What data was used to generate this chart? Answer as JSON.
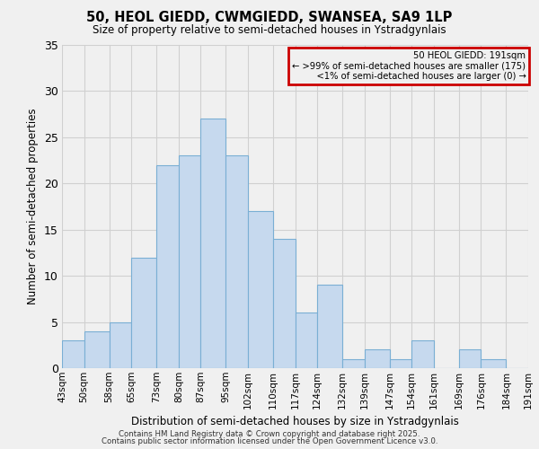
{
  "title": "50, HEOL GIEDD, CWMGIEDD, SWANSEA, SA9 1LP",
  "subtitle": "Size of property relative to semi-detached houses in Ystradgynlais",
  "xlabel": "Distribution of semi-detached houses by size in Ystradgynlais",
  "ylabel": "Number of semi-detached properties",
  "bins": [
    43,
    50,
    58,
    65,
    73,
    80,
    87,
    95,
    102,
    110,
    117,
    124,
    132,
    139,
    147,
    154,
    161,
    169,
    176,
    184,
    191
  ],
  "counts": [
    3,
    4,
    5,
    12,
    22,
    23,
    27,
    23,
    17,
    14,
    6,
    9,
    1,
    2,
    1,
    3,
    0,
    2,
    1,
    0
  ],
  "bar_color": "#c6d9ee",
  "bar_edge_color": "#7aafd4",
  "ylim": [
    0,
    35
  ],
  "yticks": [
    0,
    5,
    10,
    15,
    20,
    25,
    30,
    35
  ],
  "tick_labels": [
    "43sqm",
    "50sqm",
    "58sqm",
    "65sqm",
    "73sqm",
    "80sqm",
    "87sqm",
    "95sqm",
    "102sqm",
    "110sqm",
    "117sqm",
    "124sqm",
    "132sqm",
    "139sqm",
    "147sqm",
    "154sqm",
    "161sqm",
    "169sqm",
    "176sqm",
    "184sqm",
    "191sqm"
  ],
  "legend_title": "50 HEOL GIEDD: 191sqm",
  "legend_line1": "← >99% of semi-detached houses are smaller (175)",
  "legend_line2": "    <1% of semi-detached houses are larger (0) →",
  "legend_box_color": "#cc0000",
  "footer1": "Contains HM Land Registry data © Crown copyright and database right 2025.",
  "footer2": "Contains public sector information licensed under the Open Government Licence v3.0.",
  "bg_color": "#f0f0f0",
  "grid_color": "#d0d0d0"
}
